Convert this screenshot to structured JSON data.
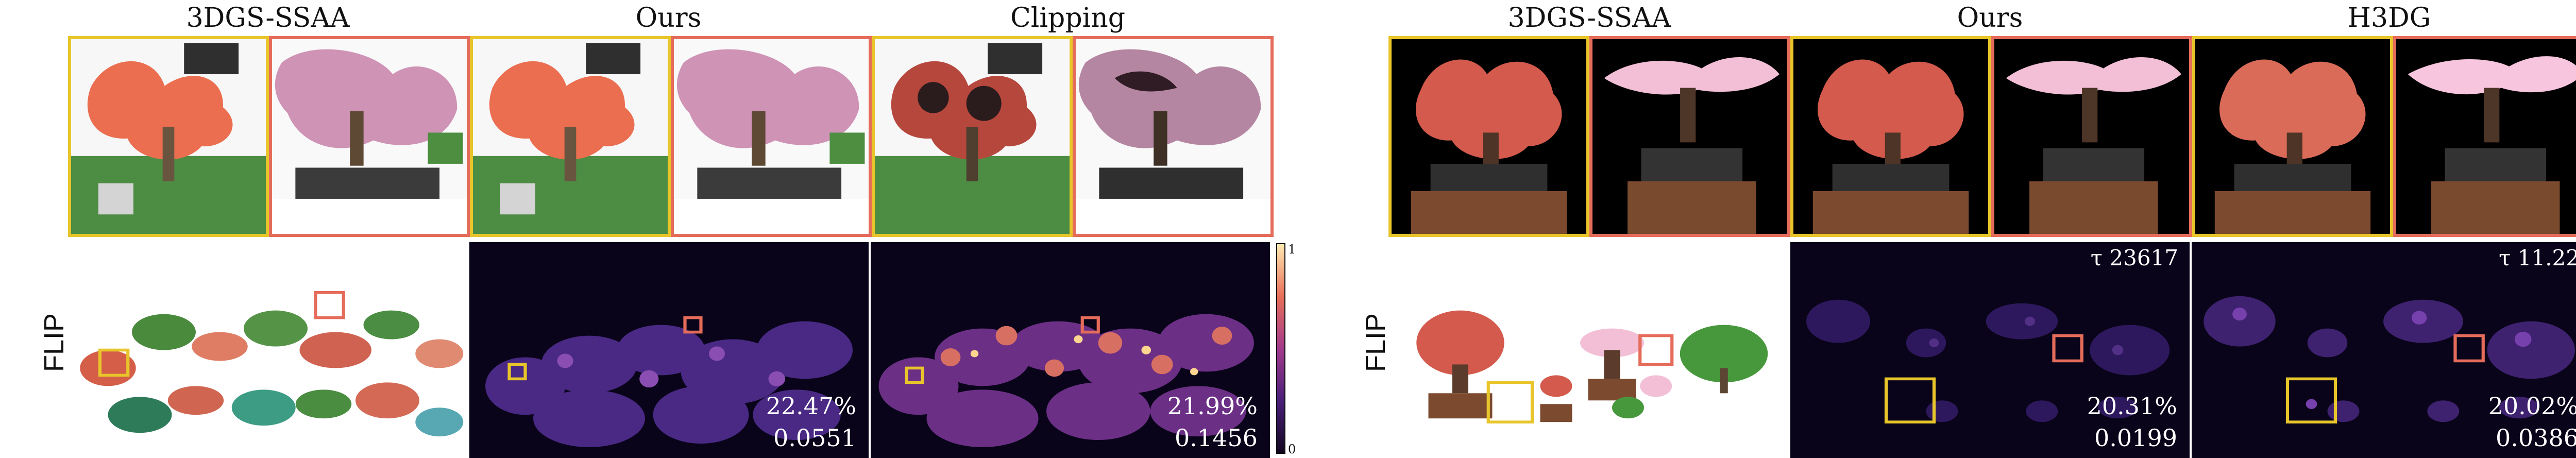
{
  "left_block": {
    "titles": [
      "3DGS-SSAA",
      "Ours",
      "Clipping"
    ],
    "row_label": "FLIP",
    "metrics": {
      "ours": [
        "22.47%",
        "0.0551"
      ],
      "clipping": [
        "21.99%",
        "0.1456"
      ]
    },
    "colorbar": {
      "max": "1",
      "min": "0"
    }
  },
  "right_block": {
    "titles": [
      "3DGS-SSAA",
      "Ours",
      "H3DG"
    ],
    "row_label": "FLIP",
    "tau": {
      "ours": "τ 23617",
      "h3dg": "τ 11.22"
    },
    "metrics": {
      "ours": [
        "20.31%",
        "0.0199"
      ],
      "h3dg": [
        "20.02%",
        "0.0386"
      ]
    },
    "colorbar": {
      "max": "1",
      "min": "0"
    }
  },
  "colors": {
    "yellow_box": "#e8c52a",
    "red_box": "#e56c5a",
    "flip_background": "#09041a"
  }
}
